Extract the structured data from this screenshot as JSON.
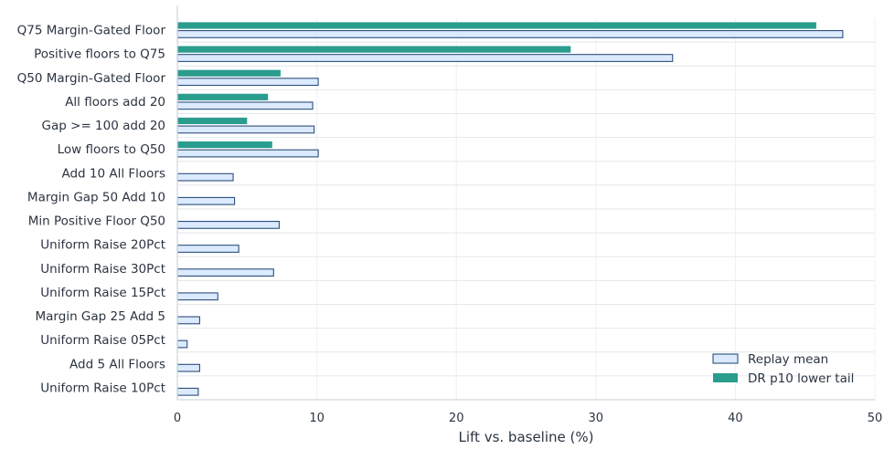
{
  "chart_data": {
    "type": "bar",
    "orientation": "horizontal",
    "xlabel": "Lift vs. baseline (%)",
    "xlim": [
      0,
      50
    ],
    "xticks": [
      0,
      10,
      20,
      30,
      40,
      50
    ],
    "grid": true,
    "legend_position": "bottom-right",
    "categories": [
      "Q75 Margin-Gated Floor",
      "Positive floors to Q75",
      "Q50 Margin-Gated Floor",
      "All floors add 20",
      "Gap >= 100 add 20",
      "Low floors to Q50",
      "Add 10 All Floors",
      "Margin Gap 50 Add 10",
      "Min Positive Floor Q50",
      "Uniform Raise 20Pct",
      "Uniform Raise 30Pct",
      "Uniform Raise 15Pct",
      "Margin Gap 25 Add 5",
      "Uniform Raise 05Pct",
      "Add 5 All Floors",
      "Uniform Raise 10Pct"
    ],
    "series": [
      {
        "name": "Replay mean",
        "color": "#dbeafe",
        "edge_color": "#2d4f7a",
        "values": [
          47.7,
          35.5,
          10.1,
          9.7,
          9.8,
          10.1,
          4.0,
          4.1,
          7.3,
          4.4,
          6.9,
          2.9,
          1.6,
          0.7,
          1.6,
          1.5
        ]
      },
      {
        "name": "DR p10 lower tail",
        "color": "#2a9d8f",
        "values": [
          45.8,
          28.2,
          7.4,
          6.5,
          5.0,
          6.8,
          null,
          null,
          null,
          null,
          null,
          null,
          null,
          null,
          null,
          null
        ]
      }
    ]
  }
}
